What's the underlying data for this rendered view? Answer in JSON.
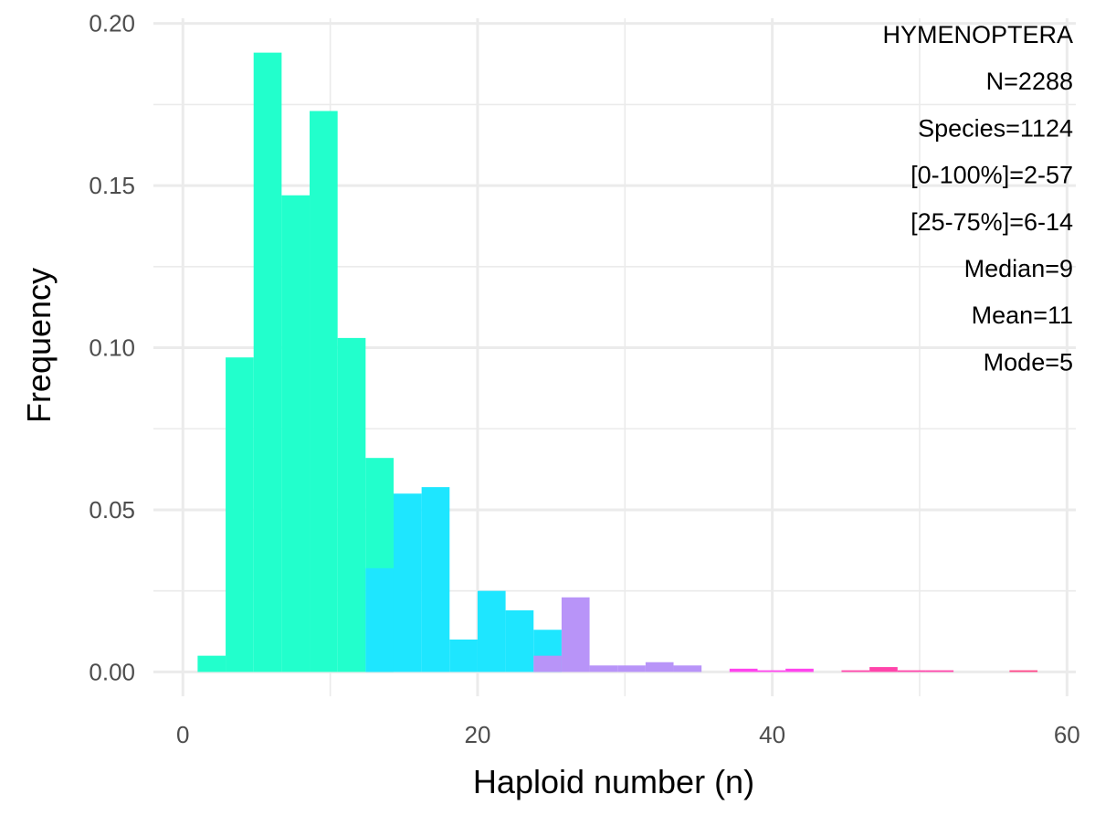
{
  "chart_data": {
    "type": "bar",
    "subtype": "histogram",
    "xlabel": "Haploid number (n)",
    "ylabel": "Frequency",
    "xlim": [
      0,
      60
    ],
    "ylim": [
      0,
      0.2
    ],
    "x_ticks": [
      "0",
      "20",
      "40",
      "60"
    ],
    "y_ticks": [
      "0.00",
      "0.05",
      "0.10",
      "0.15",
      "0.20"
    ],
    "grid": true,
    "bin_width": 1.9,
    "annotation_lines": [
      "HYMENOPTERA",
      "N=2288",
      "Species=1124",
      "[0-100%]=2-57",
      "[25-75%]=6-14",
      "Median=9",
      "Mean=11",
      "Mode=5"
    ],
    "annotation_position": "top-right",
    "bins": [
      {
        "x0": 1.0,
        "value": 0.005,
        "color": "#22ffcc"
      },
      {
        "x0": 2.9,
        "value": 0.097,
        "color": "#22ffcc"
      },
      {
        "x0": 4.8,
        "value": 0.191,
        "color": "#22ffcc"
      },
      {
        "x0": 6.7,
        "value": 0.147,
        "color": "#22ffcc"
      },
      {
        "x0": 8.6,
        "value": 0.173,
        "color": "#22ffcc"
      },
      {
        "x0": 10.5,
        "value": 0.103,
        "color": "#22ffcc"
      },
      {
        "x0": 12.4,
        "value": 0.066,
        "color": "#22ffcc"
      },
      {
        "x0": 14.3,
        "value": 0.055,
        "color": "#1ee6ff"
      },
      {
        "x0": 16.2,
        "value": 0.057,
        "color": "#1ee6ff"
      },
      {
        "x0": 18.1,
        "value": 0.01,
        "color": "#1ee6ff"
      },
      {
        "x0": 20.0,
        "value": 0.025,
        "color": "#1ee6ff"
      },
      {
        "x0": 21.9,
        "value": 0.019,
        "color": "#1ee6ff"
      },
      {
        "x0": 23.8,
        "value": 0.013,
        "color": "#1ee6ff"
      },
      {
        "x0": 25.7,
        "value": 0.023,
        "color": "#b894f8"
      },
      {
        "x0": 27.6,
        "value": 0.002,
        "color": "#b894f8"
      },
      {
        "x0": 29.5,
        "value": 0.002,
        "color": "#b894f8"
      },
      {
        "x0": 31.4,
        "value": 0.003,
        "color": "#b894f8"
      },
      {
        "x0": 33.3,
        "value": 0.002,
        "color": "#b894f8"
      },
      {
        "x0": 37.1,
        "value": 0.001,
        "color": "#ff44ee"
      },
      {
        "x0": 39.0,
        "value": 0.0005,
        "color": "#ff44ee"
      },
      {
        "x0": 40.9,
        "value": 0.001,
        "color": "#ff44ee"
      },
      {
        "x0": 44.7,
        "value": 0.0005,
        "color": "#ff44aa"
      },
      {
        "x0": 46.6,
        "value": 0.0015,
        "color": "#ff44aa"
      },
      {
        "x0": 48.5,
        "value": 0.0005,
        "color": "#ff44aa"
      },
      {
        "x0": 50.4,
        "value": 0.0005,
        "color": "#ff44aa"
      },
      {
        "x0": 56.1,
        "value": 0.0005,
        "color": "#ff4488"
      }
    ],
    "overlay_bins": [
      {
        "x0": 12.4,
        "value": 0.032,
        "color": "#1ee6ff"
      },
      {
        "x0": 23.8,
        "value": 0.005,
        "color": "#b894f8"
      }
    ]
  }
}
